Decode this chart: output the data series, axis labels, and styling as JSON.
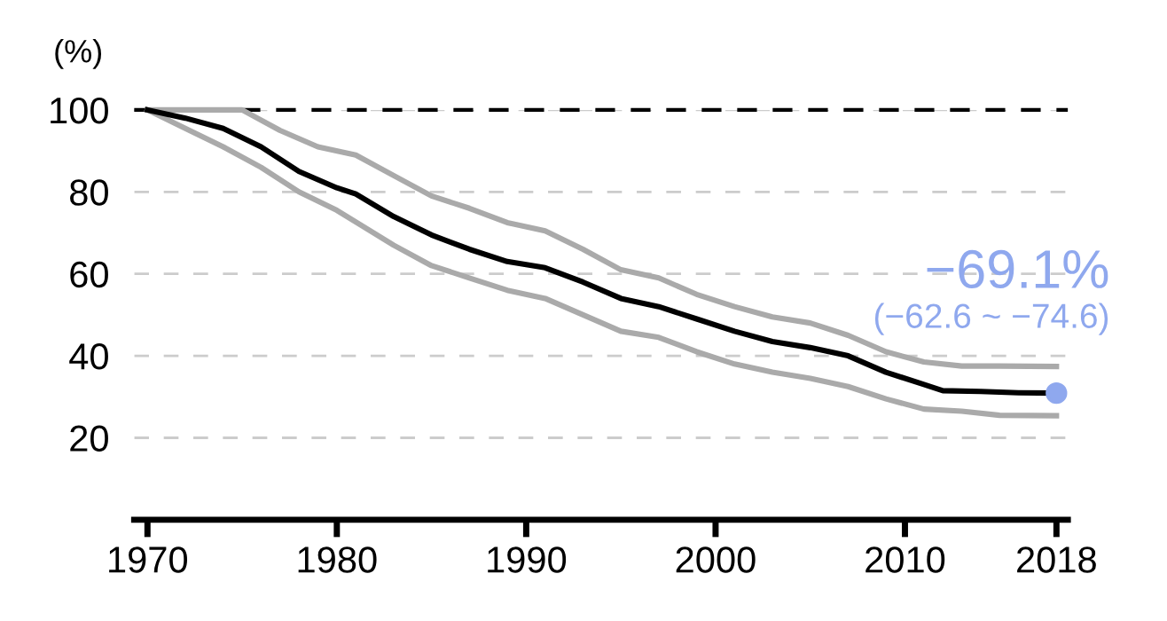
{
  "chart_data": {
    "type": "line",
    "ylabel": "(%)",
    "series": [
      {
        "x": [
          1970,
          1972,
          1975,
          1977,
          1979,
          1981,
          1983,
          1985,
          1987,
          1989,
          1991,
          1993,
          1995,
          1997,
          1999,
          2001,
          2003,
          2005,
          2007,
          2009,
          2011,
          2013,
          2015,
          2018
        ],
        "values": [
          100,
          100,
          100,
          95,
          91,
          89,
          84,
          79,
          76,
          72.5,
          70.5,
          66,
          61,
          59,
          55,
          52,
          49.5,
          48,
          45,
          41,
          38.5,
          37.5,
          37.5,
          37.4
        ],
        "color": "#aaaaaa"
      },
      {
        "x": [
          1970,
          1972,
          1974,
          1976,
          1978,
          1980,
          1983,
          1985,
          1987,
          1989,
          1991,
          1993,
          1995,
          1997,
          1999,
          2001,
          2003,
          2005,
          2007,
          2009,
          2011,
          2013,
          2015,
          2018
        ],
        "values": [
          100,
          95.5,
          91,
          86,
          80,
          75.5,
          67,
          62,
          59,
          56,
          54,
          50,
          46,
          44.5,
          41,
          38,
          36,
          34.5,
          32.5,
          29.5,
          27,
          26.5,
          25.5,
          25.4
        ],
        "color": "#aaaaaa"
      },
      {
        "x": [
          1970,
          1972,
          1974,
          1976,
          1978,
          1980,
          1981,
          1983,
          1985,
          1987,
          1989,
          1991,
          1993,
          1995,
          1997,
          1999,
          2001,
          2003,
          2005,
          2007,
          2009,
          2011,
          2012,
          2014,
          2016,
          2018
        ],
        "values": [
          100,
          98,
          95.5,
          91,
          85,
          81,
          79.5,
          74,
          69.5,
          66,
          63,
          61.5,
          58,
          54,
          52,
          49,
          46,
          43.5,
          42,
          40,
          36,
          33,
          31.5,
          31.3,
          31,
          30.9
        ],
        "color": "#000000"
      },
      {
        "type": "scatter",
        "x": [
          2018
        ],
        "values": [
          30.9
        ],
        "color": "#8fa8ee"
      }
    ],
    "xlim": [
      1969.3,
      2018.6
    ],
    "xticks": [
      1970,
      1980,
      1990,
      2000,
      2010,
      2018
    ],
    "ylim": [
      0,
      100
    ],
    "yticks": [
      20,
      40,
      60,
      80,
      100
    ],
    "grid": "y",
    "ref_lines": [
      {
        "axis": "y",
        "value": 100,
        "color": "#000000",
        "line_style": "dashed"
      }
    ],
    "annotations": [
      "−69.1%",
      "(−62.6 ~ −74.6)"
    ]
  }
}
